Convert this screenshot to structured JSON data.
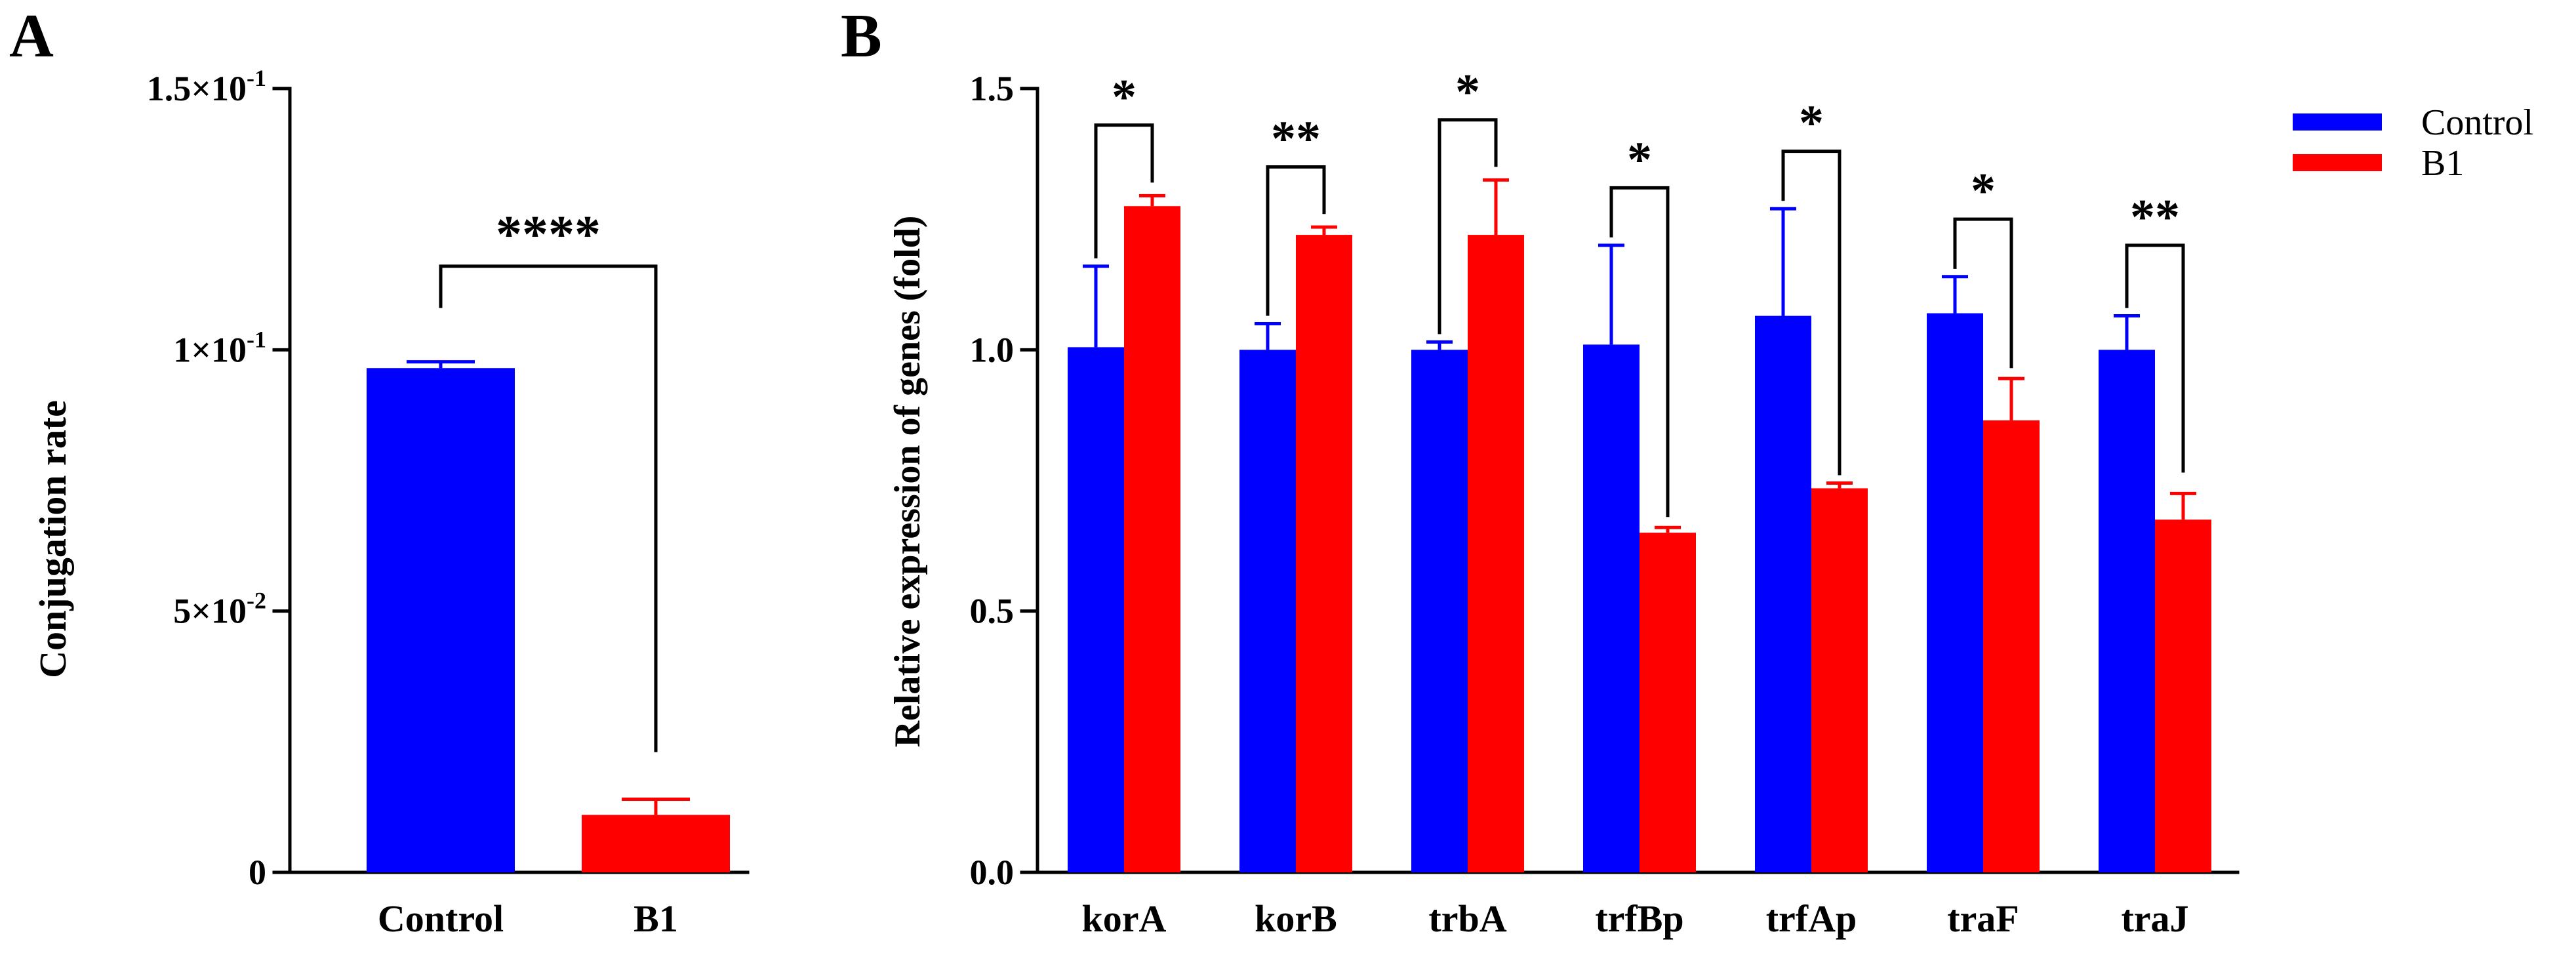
{
  "chart_data": [
    {
      "panel_label": "A",
      "type": "bar",
      "categories": [
        "Control",
        "B1"
      ],
      "values": [
        0.0965,
        0.011
      ],
      "errors": [
        0.0012,
        0.003
      ],
      "colors": [
        "#0000ff",
        "#ff0000"
      ],
      "ylabel": "Conjugation rate",
      "xlabel": "",
      "ylim": [
        0,
        0.15
      ],
      "yticks": [
        {
          "value": 0,
          "label": "0",
          "exp": ""
        },
        {
          "value": 0.05,
          "label": "5×10",
          "exp": "-2"
        },
        {
          "value": 0.1,
          "label": "1×10",
          "exp": "-1"
        },
        {
          "value": 0.15,
          "label": "1.5×10",
          "exp": "-1"
        }
      ],
      "significance": [
        {
          "left": 0,
          "right": 1,
          "label": "****",
          "bracket_top": 0.116,
          "left_end": 0.108,
          "right_end": 0.023
        }
      ]
    },
    {
      "panel_label": "B",
      "type": "bar",
      "categories": [
        "korA",
        "korB",
        "trbA",
        "trfBp",
        "trfAp",
        "traF",
        "traJ"
      ],
      "series": [
        {
          "name": "Control",
          "color": "#0000ff",
          "values": [
            1.005,
            1.0,
            1.0,
            1.01,
            1.065,
            1.07,
            1.0
          ],
          "errors": [
            0.155,
            0.05,
            0.015,
            0.19,
            0.205,
            0.07,
            0.065
          ]
        },
        {
          "name": "B1",
          "color": "#ff0000",
          "values": [
            1.275,
            1.22,
            1.22,
            0.65,
            0.735,
            0.865,
            0.675
          ],
          "errors": [
            0.02,
            0.015,
            0.105,
            0.01,
            0.01,
            0.08,
            0.05
          ]
        }
      ],
      "ylabel": "Relative expression of genes (fold)",
      "xlabel": "",
      "ylim": [
        0,
        1.5
      ],
      "yticks": [
        {
          "value": 0,
          "label": "0.0"
        },
        {
          "value": 0.5,
          "label": "0.5"
        },
        {
          "value": 1.0,
          "label": "1.0"
        },
        {
          "value": 1.5,
          "label": "1.5"
        }
      ],
      "legend_position": "top-right",
      "significance": [
        {
          "label": "*",
          "bracket_top": 1.43,
          "left_end": 1.175,
          "right_end": 1.32
        },
        {
          "label": "**",
          "bracket_top": 1.35,
          "left_end": 1.065,
          "right_end": 1.26
        },
        {
          "label": "*",
          "bracket_top": 1.44,
          "left_end": 1.03,
          "right_end": 1.35
        },
        {
          "label": "*",
          "bracket_top": 1.31,
          "left_end": 1.215,
          "right_end": 0.68
        },
        {
          "label": "*",
          "bracket_top": 1.38,
          "left_end": 1.285,
          "right_end": 0.76
        },
        {
          "label": "*",
          "bracket_top": 1.25,
          "left_end": 1.155,
          "right_end": 0.965
        },
        {
          "label": "**",
          "bracket_top": 1.2,
          "left_end": 1.08,
          "right_end": 0.765
        }
      ]
    }
  ]
}
